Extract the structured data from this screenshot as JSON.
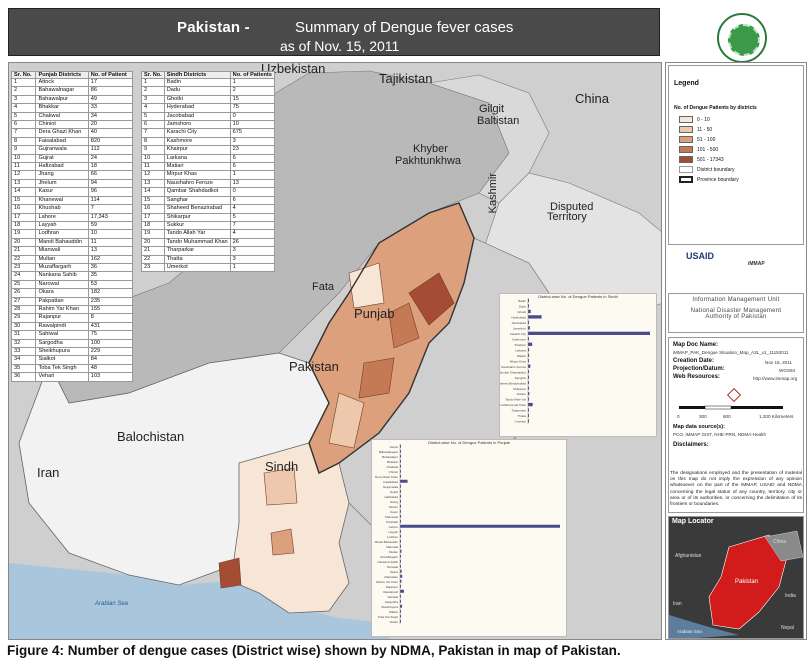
{
  "title": {
    "country": "Pakistan -",
    "line1": "Summary of Dengue fever cases",
    "line2": "as of Nov. 15, 2011"
  },
  "map_labels": {
    "uzbekistan": "Uzbekistan",
    "tajikistan": "Tajikistan",
    "china": "China",
    "gilgit": "Gilgit",
    "baltistan": "Baltistan",
    "khyber": "Khyber",
    "pakhtunkhwa": "Pakhtunkhwa",
    "kashmir": "Kashmir",
    "disputed": "Disputed",
    "territory": "Territory",
    "fata": "Fata",
    "punjab": "Punjab",
    "pakistan": "Pakistan",
    "balochistan": "Balochistan",
    "sindh": "Sindh",
    "iran": "Iran",
    "arabian_sea": "Arabian Sea"
  },
  "punjab_table": {
    "headers": [
      "Sr. No.",
      "Punjab Districts",
      "No. of Patient"
    ],
    "rows": [
      [
        "1",
        "Attock",
        "17"
      ],
      [
        "2",
        "Bahawalnagar",
        "86"
      ],
      [
        "3",
        "Bahawalpur",
        "49"
      ],
      [
        "4",
        "Bhakkar",
        "33"
      ],
      [
        "5",
        "Chakwal",
        "34"
      ],
      [
        "6",
        "Chiniot",
        "20"
      ],
      [
        "7",
        "Dera Ghazi Khan",
        "40"
      ],
      [
        "8",
        "Faisalabad",
        "820"
      ],
      [
        "9",
        "Gujranwala",
        "112"
      ],
      [
        "10",
        "Gujrat",
        "24"
      ],
      [
        "11",
        "Hafizabad",
        "18"
      ],
      [
        "12",
        "Jhang",
        "66"
      ],
      [
        "13",
        "Jhelum",
        "94"
      ],
      [
        "14",
        "Kasur",
        "96"
      ],
      [
        "15",
        "Khanewal",
        "114"
      ],
      [
        "16",
        "Khushab",
        "7"
      ],
      [
        "17",
        "Lahore",
        "17,343"
      ],
      [
        "18",
        "Layyah",
        "59"
      ],
      [
        "19",
        "Lodhran",
        "10"
      ],
      [
        "20",
        "Mandi Bahauddin",
        "11"
      ],
      [
        "21",
        "Mianwali",
        "13"
      ],
      [
        "22",
        "Multan",
        "162"
      ],
      [
        "23",
        "Muzaffargarh",
        "36"
      ],
      [
        "24",
        "Nankana Sahib",
        "35"
      ],
      [
        "25",
        "Narowal",
        "53"
      ],
      [
        "26",
        "Okara",
        "182"
      ],
      [
        "27",
        "Pakpattan",
        "235"
      ],
      [
        "28",
        "Rahim Yar Khan",
        "155"
      ],
      [
        "29",
        "Rajanpur",
        "8"
      ],
      [
        "30",
        "Rawalpindi",
        "431"
      ],
      [
        "31",
        "Sahiwal",
        "75"
      ],
      [
        "32",
        "Sargodha",
        "100"
      ],
      [
        "33",
        "Sheikhupura",
        "229"
      ],
      [
        "34",
        "Sialkot",
        "84"
      ],
      [
        "35",
        "Toba Tek Singh",
        "48"
      ],
      [
        "36",
        "Vehari",
        "103"
      ]
    ]
  },
  "sindh_table": {
    "headers": [
      "Sr. No.",
      "Sindh Districts",
      "No. of Patients"
    ],
    "rows": [
      [
        "1",
        "Badin",
        "1"
      ],
      [
        "2",
        "Dadu",
        "2"
      ],
      [
        "3",
        "Ghotki",
        "15"
      ],
      [
        "4",
        "Hyderabad",
        "75"
      ],
      [
        "5",
        "Jacobabad",
        "0"
      ],
      [
        "6",
        "Jamshoro",
        "10"
      ],
      [
        "7",
        "Karachi City",
        "675"
      ],
      [
        "8",
        "Kashmore",
        "3"
      ],
      [
        "9",
        "Khairpur",
        "23"
      ],
      [
        "10",
        "Larkana",
        "6"
      ],
      [
        "11",
        "Matiari",
        "6"
      ],
      [
        "12",
        "Mirpur Khas",
        "1"
      ],
      [
        "13",
        "Naushahro Feroze",
        "13"
      ],
      [
        "14",
        "Qambar Shahdadkot",
        "0"
      ],
      [
        "15",
        "Sanghar",
        "6"
      ],
      [
        "16",
        "Shaheed Benazirabad",
        "4"
      ],
      [
        "17",
        "Shikarpur",
        "5"
      ],
      [
        "18",
        "Sukkur",
        "7"
      ],
      [
        "19",
        "Tando Allah Yar",
        "4"
      ],
      [
        "20",
        "Tando Muhammad Khan",
        "26"
      ],
      [
        "21",
        "Tharparkar",
        "3"
      ],
      [
        "22",
        "Thatta",
        "3"
      ],
      [
        "23",
        "Umerkot",
        "1"
      ]
    ]
  },
  "inset_sindh_title": "District-wise No. of Dengue Patients in Sindh",
  "inset_punjab_title": "District-wise No. of Dengue Patients in Punjab",
  "legend": {
    "title": "Legend",
    "subtitle": "No. of Dengue Patients by districts",
    "classes": [
      {
        "label": "0 - 10",
        "color": "#f7e6d6"
      },
      {
        "label": "11 - 50",
        "color": "#eec8ad"
      },
      {
        "label": "51 - 100",
        "color": "#dda07c"
      },
      {
        "label": "101 - 500",
        "color": "#c47a55"
      },
      {
        "label": "501 - 17343",
        "color": "#a54d34"
      }
    ],
    "district_boundary": "District boundary",
    "province_boundary": "Province boundary"
  },
  "partners": {
    "usaid": "USAID",
    "usaid_sub": "FROM THE AMERICAN PEOPLE",
    "immap": "iMMAP"
  },
  "imu": {
    "line1": "Information Management Unit",
    "line2": "National Disaster Management",
    "line3": "Authority of Pakistan"
  },
  "mapinfo": {
    "doc_name_label": "Map Doc Name:",
    "doc_name": "iMMAP_PAK_Dengue Situation_Map_A3L_v1_11152011",
    "creation_date_label": "Creation Date:",
    "creation_date": "Nov 15, 2011",
    "projection_label": "Projection/Datum:",
    "projection": "WGS84",
    "web_label": "Web Resources:",
    "web": "http://www.immap.org",
    "scale": [
      "0",
      "300",
      "600",
      "1,200 Kilometers"
    ],
    "source_label": "Map data source(s):",
    "source": "PCO, iMMAP GIST, NHE-PRN, NDMA-Health"
  },
  "disclaimers": {
    "label": "Disclaimers:",
    "text": "The designations employed and the presentation of material on this map do not imply the expression of any opinion whatsoever on the part of the iMMAP, USAID and NDMA concerning the legal status of any country, territory, city or area or of its authorities, or concerning the delimitation of its frontiers or boundaries."
  },
  "locator": {
    "title": "Map Locator",
    "afghanistan": "Afghanistan",
    "pakistan": "Pakistan",
    "iran": "Iran",
    "india": "India",
    "arabian_sea": "Arabian Sea",
    "china": "China",
    "nepal": "Nepal"
  },
  "caption": "Figure 4: Number of dengue cases (District wise) shown by NDMA, Pakistan in map of Pakistan.",
  "colors": {
    "banner": "#4a4a4a",
    "map_bg": "#cfcfcf",
    "punjab_high": "#a54d34",
    "sea": "#a9c6dd"
  }
}
